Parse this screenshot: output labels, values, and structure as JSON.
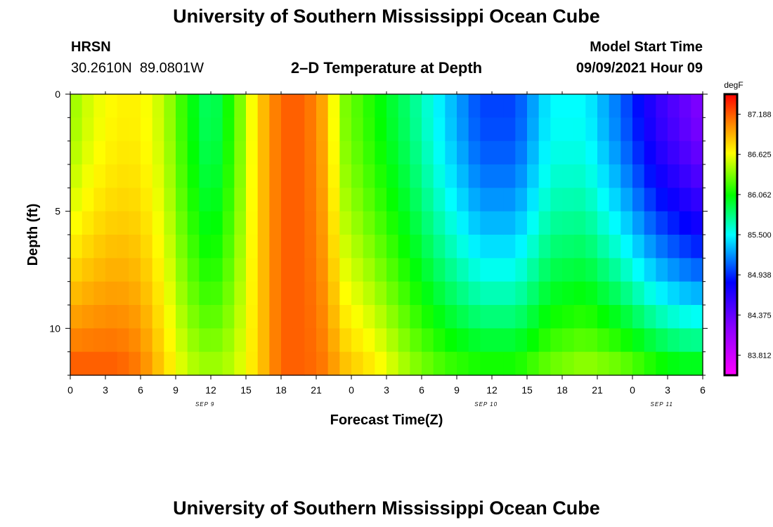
{
  "page": {
    "top_title": "University of Southern Mississippi Ocean Cube",
    "bottom_title": "University of Southern Mississippi Ocean Cube"
  },
  "header": {
    "station": "HRSN",
    "coordinates": "30.2610N  89.0801W",
    "chart_title": "2–D Temperature at Depth",
    "model_label": "Model Start Time",
    "model_time": "09/09/2021 Hour 09"
  },
  "chart_data": {
    "type": "heatmap",
    "title": "2–D Temperature at Depth",
    "xlabel": "Forecast Time(Z)",
    "ylabel": "Depth (ft)",
    "x_tick_labels": [
      "0",
      "3",
      "6",
      "9",
      "12",
      "15",
      "18",
      "21",
      "0",
      "3",
      "6",
      "9",
      "12",
      "15",
      "18",
      "21",
      "0",
      "3",
      "6"
    ],
    "x_tick_hours": [
      0,
      3,
      6,
      9,
      12,
      15,
      18,
      21,
      24,
      27,
      30,
      33,
      36,
      39,
      42,
      45,
      48,
      51,
      54
    ],
    "date_labels": [
      {
        "text": "SEP 9",
        "hour": 11.5
      },
      {
        "text": "SEP 10",
        "hour": 35.5
      },
      {
        "text": "SEP 11",
        "hour": 50.5
      }
    ],
    "xlim": [
      0,
      54
    ],
    "y_tick_labels": [
      "0",
      "5",
      "10"
    ],
    "y_tick_values": [
      0,
      5,
      10
    ],
    "ylim": [
      0,
      12
    ],
    "colorbar": {
      "unit": "degF",
      "tick_labels": [
        "87.188",
        "86.625",
        "86.062",
        "85.500",
        "84.938",
        "84.375",
        "83.812"
      ],
      "min": 83.6,
      "max": 87.6
    },
    "depth_levels": [
      0.5,
      1.5,
      2.5,
      3.5,
      4.5,
      5.5,
      6.5,
      7.5,
      8.5,
      9.5,
      10.5,
      11.5
    ],
    "time_series_hours": [
      0,
      2,
      4,
      6,
      8,
      10,
      12,
      14,
      16,
      18,
      20,
      22,
      23,
      26,
      29,
      32,
      35,
      38,
      41,
      44,
      47,
      50,
      52,
      54
    ],
    "surface_temps": [
      86.5,
      86.7,
      86.8,
      86.8,
      86.6,
      86.2,
      85.9,
      86.3,
      86.9,
      87.3,
      87.3,
      87.0,
      86.5,
      86.2,
      85.9,
      85.5,
      85.1,
      85.1,
      85.6,
      85.6,
      85.2,
      84.7,
      84.5,
      84.3
    ],
    "bottom_temps": [
      87.3,
      87.3,
      87.3,
      87.2,
      86.9,
      86.6,
      86.5,
      86.6,
      86.9,
      87.3,
      87.3,
      87.2,
      87.0,
      86.8,
      86.5,
      86.3,
      86.2,
      86.2,
      86.4,
      86.5,
      86.4,
      86.2,
      86.1,
      86.1
    ]
  }
}
